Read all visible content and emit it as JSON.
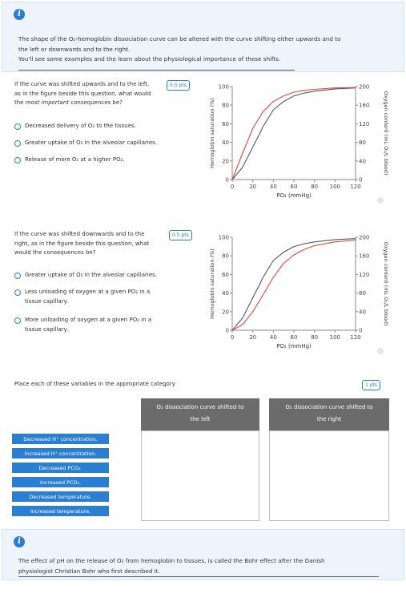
{
  "info_top": {
    "line1": "The shape of the O₂-hemoglobin dissociation curve can be altered with the curve shifting either upwards and to",
    "line2": "the left or downwards and to the right.",
    "line3": "You'll see some examples and the learn about the physiological importance of these shifts."
  },
  "q1": {
    "line1": "If the curve was shifted upwards and to the left,",
    "line2": "as in the figure beside this question, what would",
    "line3_prefix": "the ",
    "line3_emph": "most important",
    "line3_suffix": " consequences be?",
    "points": "0.5 pts",
    "options": [
      "Decreased delivery of O₂ to the tissues.",
      "Greater uptake of O₂ in the alveolar capillaries.",
      "Release of more O₂ at a higher PO₂."
    ]
  },
  "q2": {
    "line1": "If the curve was shifted downwards and to the",
    "line2": "right, as in the figure beside this question, what",
    "line3": "would the consequences be?",
    "points": "0.5 pts",
    "options": [
      [
        "Greater uptake of O₂ in the alveolar capillaries."
      ],
      [
        "Less unloading of oxygen at a given PO₂ in a",
        "tissue capillary."
      ],
      [
        "More unloading of oxygen at a given PO₂ in a",
        "tissue capillary."
      ]
    ]
  },
  "chart_data": [
    {
      "type": "line",
      "x_ticks": [
        "0",
        "20",
        "40",
        "60",
        "80",
        "100",
        "120"
      ],
      "y_ticks": [
        "0",
        "20",
        "40",
        "60",
        "80",
        "100"
      ],
      "y2_ticks": [
        "0",
        "40",
        "80",
        "120",
        "160",
        "200"
      ],
      "xlabel": "PO₂ (mmHg)",
      "ylabel": "Hemoglobin saturation (%)",
      "y2label": "Oxygen content (mL O₂/L blood)",
      "xlim": [
        0,
        120
      ],
      "ylim": [
        0,
        100
      ],
      "y2lim": [
        0,
        200
      ],
      "series": [
        {
          "color": "#555555",
          "x": [
            0,
            10,
            20,
            27,
            30,
            40,
            50,
            60,
            70,
            80,
            100,
            120
          ],
          "y": [
            0,
            13,
            35,
            50,
            57,
            75,
            84,
            90,
            93,
            95,
            97.5,
            98.5
          ]
        },
        {
          "color": "#e0483f",
          "x": [
            0,
            10,
            20,
            30,
            40,
            50,
            60,
            70,
            80,
            100,
            120
          ],
          "y": [
            0,
            28,
            55,
            73,
            84,
            90,
            94,
            96,
            97,
            98.5,
            99
          ]
        }
      ]
    },
    {
      "type": "line",
      "x_ticks": [
        "0",
        "20",
        "40",
        "60",
        "80",
        "100",
        "120"
      ],
      "y_ticks": [
        "0",
        "20",
        "40",
        "60",
        "80",
        "100"
      ],
      "y2_ticks": [
        "0",
        "40",
        "80",
        "120",
        "160",
        "200"
      ],
      "xlabel": "PO₂ (mmHg)",
      "ylabel": "Hemoglobin saturation (%)",
      "y2label": "Oxygen content (mL O₂/L blood)",
      "xlim": [
        0,
        120
      ],
      "ylim": [
        0,
        100
      ],
      "y2lim": [
        0,
        200
      ],
      "series": [
        {
          "color": "#555555",
          "x": [
            0,
            10,
            20,
            27,
            30,
            40,
            50,
            60,
            70,
            80,
            100,
            120
          ],
          "y": [
            0,
            13,
            35,
            50,
            57,
            75,
            84,
            90,
            93,
            95,
            97.5,
            98.5
          ]
        },
        {
          "color": "#e0483f",
          "x": [
            0,
            10,
            20,
            30,
            40,
            50,
            60,
            70,
            80,
            100,
            120
          ],
          "y": [
            0,
            6,
            20,
            38,
            57,
            72,
            81,
            87,
            91,
            95,
            97
          ]
        }
      ]
    }
  ],
  "categorize": {
    "title": "Place each of these variables in the appropriate category",
    "points": "1 pts",
    "left_header_1": "O₂ dissociation curve shifted to",
    "left_header_2": "the left",
    "right_header_1": "O₂ dissociation curve shifted to",
    "right_header_2": "the right",
    "items": [
      "Decreased H⁺ concentration.",
      "Increased H⁺ concentration.",
      "Decreased PCO₂.",
      "Increased PCO₂.",
      "Decreased temperature.",
      "Increased temperature."
    ]
  },
  "info_bottom": {
    "line1": "The effect of pH on the release of O₂ from hemoglobin to tissues, is called the Bohr effect after the Danish",
    "line2": "physiologist Christian Bohr who first described it."
  },
  "colors": {
    "accent": "#2a7fd4",
    "info_bg": "#eef4fb",
    "header_bg": "#6b6b6b",
    "curve_normal": "#555555",
    "curve_shifted": "#e0483f"
  }
}
